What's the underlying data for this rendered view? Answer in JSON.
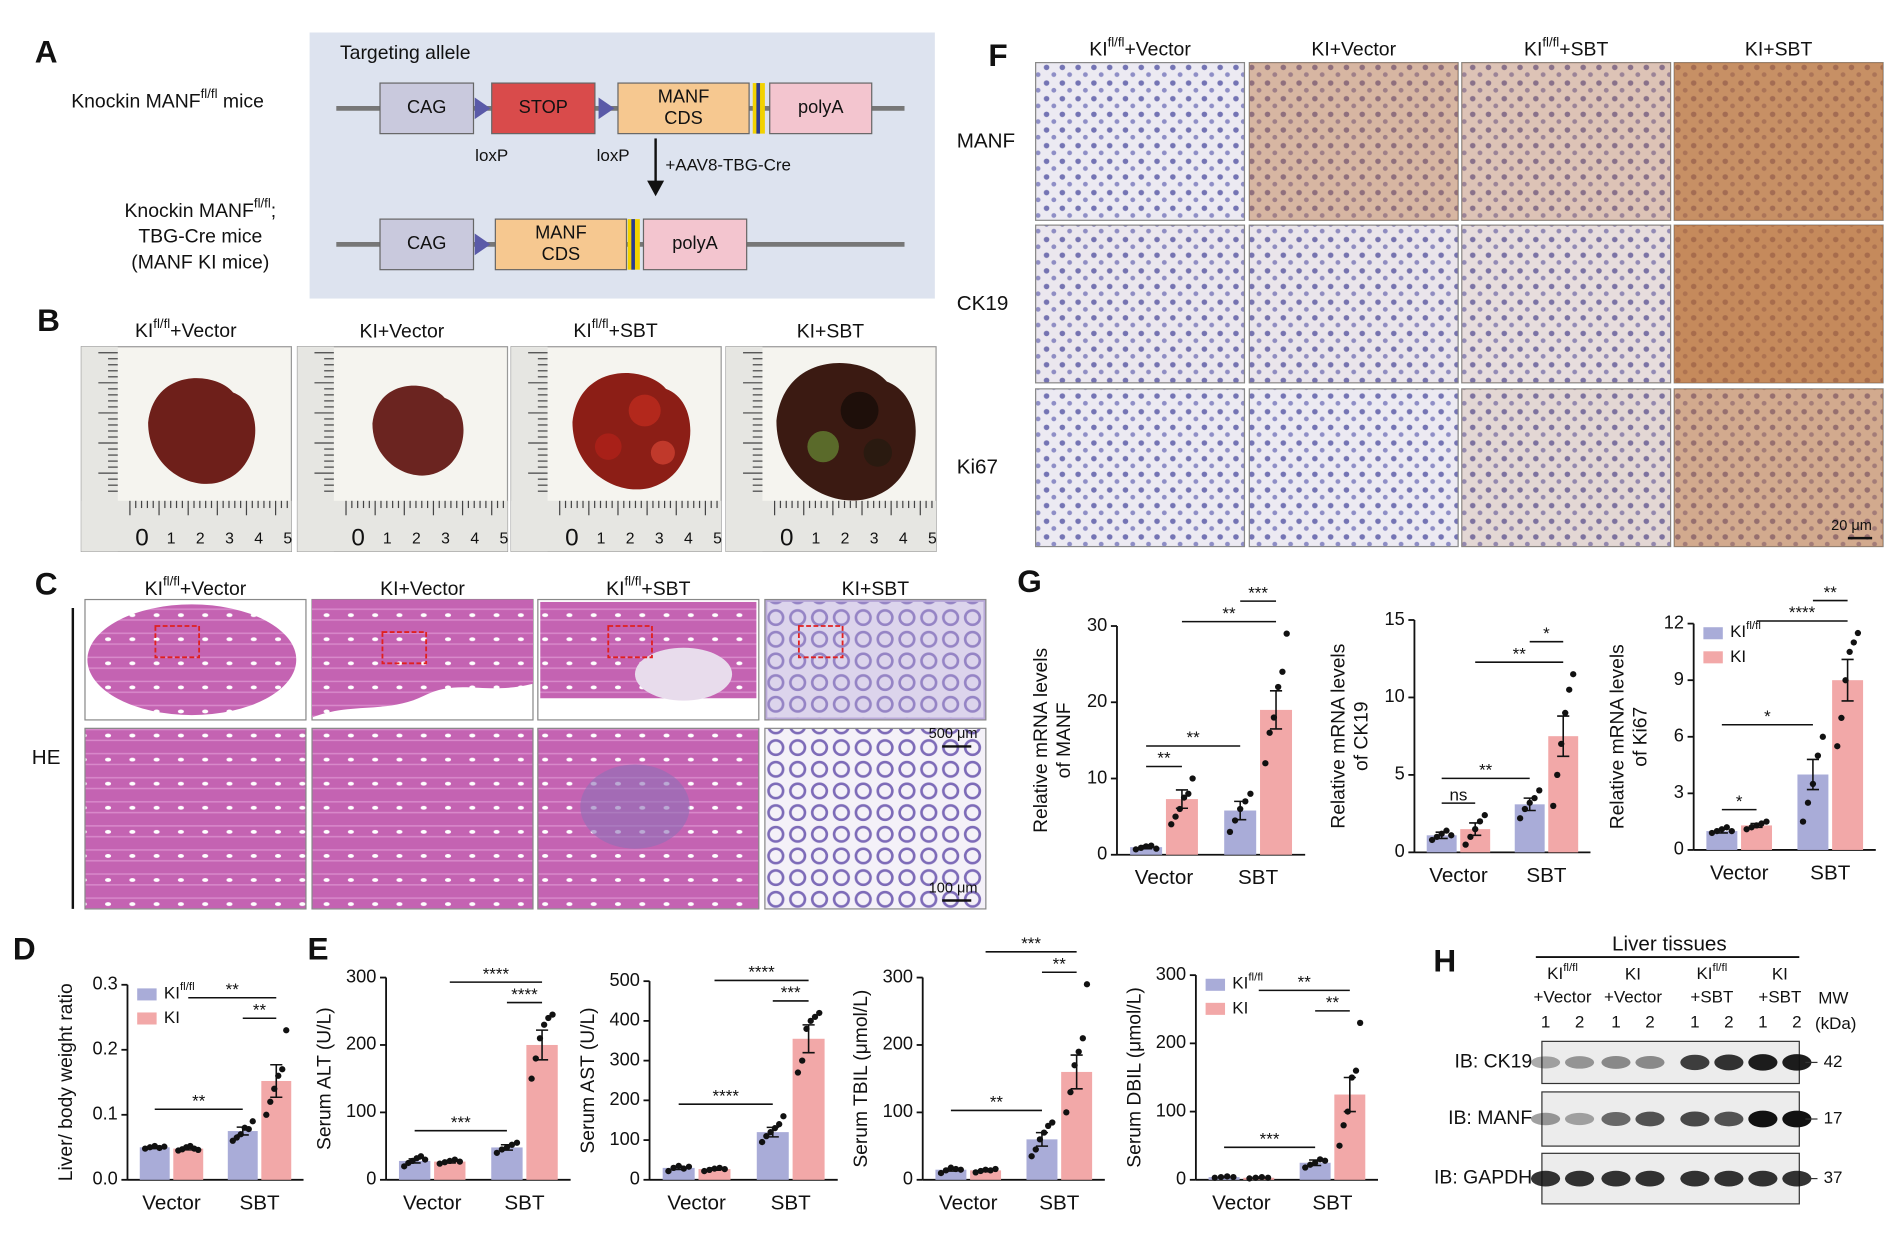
{
  "panel_labels": [
    "A",
    "B",
    "C",
    "D",
    "E",
    "F",
    "G",
    "H"
  ],
  "panel_a": {
    "mouse_1": "Knockin MANFfl/fl mice",
    "mouse_2": [
      "Knockin MANFfl/fl;",
      "TBG-Cre mice",
      "(MANF KI mice)"
    ],
    "box_title": "Targeting allele",
    "allele_1": [
      "CAG",
      "STOP",
      [
        "MANF",
        "CDS"
      ],
      "polyA"
    ],
    "loxp": "loxP",
    "treatment": "+AAV8-TBG-Cre",
    "allele_2": [
      "CAG",
      [
        "MANF",
        "CDS"
      ],
      "polyA"
    ]
  },
  "panel_b": {
    "columns": [
      "KIfl/fl+Vector",
      "KI+Vector",
      "KIfl/fl+SBT",
      "KI+SBT"
    ],
    "ruler": [
      0,
      1,
      2,
      3,
      4,
      5
    ]
  },
  "panel_c": {
    "columns": [
      "KIfl/fl+Vector",
      "KI+Vector",
      "KIfl/fl+SBT",
      "KI+SBT"
    ],
    "row_label": "HE",
    "scale_top": "500 μm",
    "scale_bottom": "100 μm"
  },
  "panel_f": {
    "columns": [
      "KIfl/fl+Vector",
      "KI+Vector",
      "KIfl/fl+SBT",
      "KI+SBT"
    ],
    "rows": [
      "MANF",
      "CK19",
      "Ki67"
    ],
    "scale": "20 μm"
  },
  "panel_h": {
    "title": "Liver tissues",
    "groups": [
      [
        "KIfl/fl",
        "+Vector"
      ],
      [
        "KI",
        "+Vector"
      ],
      [
        "KIfl/fl",
        "+SBT"
      ],
      [
        "KI",
        "+SBT"
      ]
    ],
    "lanes": [
      1,
      2
    ],
    "mw_label": [
      "MW",
      "(kDa)"
    ],
    "rows": [
      {
        "label": "IB: CK19",
        "mw": 42
      },
      {
        "label": "IB: MANF",
        "mw": 17
      },
      {
        "label": "IB: GAPDH",
        "mw": 37
      }
    ]
  },
  "chart_data": [
    {
      "type": "bar",
      "ylabel": "Liver/ body weight ratio",
      "categories": [
        "Vector",
        "SBT"
      ],
      "series": [
        {
          "name": "KIfl/fl",
          "color": "#a9acd8",
          "values": [
            0.05,
            0.075
          ],
          "errors": [
            0.002,
            0.006
          ],
          "points": [
            [
              0.048,
              0.05,
              0.052,
              0.049,
              0.051
            ],
            [
              0.06,
              0.065,
              0.07,
              0.08,
              0.078,
              0.09
            ]
          ]
        },
        {
          "name": "KI",
          "color": "#f2a8a8",
          "values": [
            0.048,
            0.152
          ],
          "errors": [
            0.002,
            0.025
          ],
          "points": [
            [
              0.045,
              0.047,
              0.05,
              0.052,
              0.048,
              0.046
            ],
            [
              0.1,
              0.12,
              0.14,
              0.16,
              0.17,
              0.23
            ]
          ]
        }
      ],
      "ylim": [
        0,
        0.3
      ],
      "yticks": [
        {
          "value": 0,
          "label": "0.0"
        },
        0.1,
        0.2,
        0.3
      ],
      "legend": "upper left",
      "comparisons": [
        {
          "between": [
            [
              0,
              0
            ],
            [
              0,
              1
            ]
          ],
          "label": "**"
        },
        {
          "between": [
            [
              0,
              1
            ],
            [
              1,
              1
            ]
          ],
          "label": "**"
        },
        {
          "between": [
            [
              1,
              0
            ],
            [
              1,
              1
            ]
          ],
          "label": "**"
        }
      ]
    },
    {
      "type": "bar",
      "ylabel": "Serum ALT (U/L)",
      "categories": [
        "Vector",
        "SBT"
      ],
      "series": [
        {
          "color": "#a9acd8",
          "values": [
            28,
            48
          ],
          "errors": [
            3,
            4
          ],
          "points": [
            [
              20,
              25,
              28,
              32,
              35,
              30
            ],
            [
              40,
              45,
              48,
              52,
              55
            ]
          ]
        },
        {
          "color": "#f2a8a8",
          "values": [
            27,
            200
          ],
          "errors": [
            2,
            22
          ],
          "points": [
            [
              24,
              26,
              28,
              30,
              27
            ],
            [
              150,
              180,
              210,
              230,
              240,
              245
            ]
          ]
        }
      ],
      "ylim": [
        0,
        300
      ],
      "yticks": [
        0,
        100,
        200,
        300
      ],
      "comparisons": [
        {
          "between": [
            [
              0,
              0
            ],
            [
              0,
              1
            ]
          ],
          "label": "***"
        },
        {
          "between": [
            [
              0,
              1
            ],
            [
              1,
              1
            ]
          ],
          "label": "****"
        },
        {
          "between": [
            [
              1,
              0
            ],
            [
              1,
              1
            ]
          ],
          "label": "****"
        }
      ]
    },
    {
      "type": "bar",
      "ylabel": "Serum AST (U/L)",
      "categories": [
        "Vector",
        "SBT"
      ],
      "series": [
        {
          "color": "#a9acd8",
          "values": [
            30,
            120
          ],
          "errors": [
            4,
            12
          ],
          "points": [
            [
              22,
              30,
              35,
              28,
              33
            ],
            [
              95,
              110,
              120,
              130,
              140,
              160
            ]
          ]
        },
        {
          "color": "#f2a8a8",
          "values": [
            27,
            355
          ],
          "errors": [
            3,
            35
          ],
          "points": [
            [
              22,
              25,
              28,
              30,
              27
            ],
            [
              270,
              300,
              380,
              400,
              410,
              420
            ]
          ]
        }
      ],
      "ylim": [
        0,
        500
      ],
      "yticks": [
        0,
        100,
        200,
        300,
        400,
        500
      ],
      "comparisons": [
        {
          "between": [
            [
              0,
              0
            ],
            [
              0,
              1
            ]
          ],
          "label": "****"
        },
        {
          "between": [
            [
              0,
              1
            ],
            [
              1,
              1
            ]
          ],
          "label": "***"
        },
        {
          "between": [
            [
              1,
              0
            ],
            [
              1,
              1
            ]
          ],
          "label": "****"
        }
      ]
    },
    {
      "type": "bar",
      "ylabel": "Serum TBIL (μmol/L)",
      "categories": [
        "Vector",
        "SBT"
      ],
      "series": [
        {
          "color": "#a9acd8",
          "values": [
            15,
            60
          ],
          "errors": [
            2,
            10
          ],
          "points": [
            [
              10,
              14,
              18,
              16,
              15
            ],
            [
              35,
              45,
              60,
              70,
              80,
              85
            ]
          ]
        },
        {
          "color": "#f2a8a8",
          "values": [
            14,
            160
          ],
          "errors": [
            2,
            25
          ],
          "points": [
            [
              11,
              13,
              15,
              14,
              16
            ],
            [
              100,
              130,
              170,
              190,
              210,
              290
            ]
          ]
        }
      ],
      "ylim": [
        0,
        300
      ],
      "yticks": [
        0,
        100,
        200,
        300
      ],
      "comparisons": [
        {
          "between": [
            [
              0,
              0
            ],
            [
              0,
              1
            ]
          ],
          "label": "**"
        },
        {
          "between": [
            [
              0,
              1
            ],
            [
              1,
              1
            ]
          ],
          "label": "**"
        },
        {
          "between": [
            [
              1,
              0
            ],
            [
              1,
              1
            ]
          ],
          "label": "***"
        }
      ]
    },
    {
      "type": "bar",
      "ylabel": "Serum DBIL (μmol/L)",
      "categories": [
        "Vector",
        "SBT"
      ],
      "series": [
        {
          "name": "KIfl/fl",
          "color": "#a9acd8",
          "values": [
            4,
            25
          ],
          "errors": [
            1,
            4
          ],
          "points": [
            [
              3,
              4,
              5,
              4
            ],
            [
              18,
              22,
              25,
              30,
              28
            ]
          ]
        },
        {
          "name": "KI",
          "color": "#f2a8a8",
          "values": [
            3,
            125
          ],
          "errors": [
            1,
            25
          ],
          "points": [
            [
              2,
              3,
              4,
              3
            ],
            [
              50,
              80,
              100,
              150,
              160,
              230
            ]
          ]
        }
      ],
      "ylim": [
        0,
        300
      ],
      "yticks": [
        0,
        100,
        200,
        300
      ],
      "legend": "upper left",
      "comparisons": [
        {
          "between": [
            [
              0,
              0
            ],
            [
              0,
              1
            ]
          ],
          "label": "***"
        },
        {
          "between": [
            [
              0,
              1
            ],
            [
              1,
              1
            ]
          ],
          "label": "**"
        },
        {
          "between": [
            [
              1,
              0
            ],
            [
              1,
              1
            ]
          ],
          "label": "**"
        }
      ]
    },
    {
      "type": "bar",
      "ylabel": [
        "Relative mRNA levels",
        "of MANF"
      ],
      "categories": [
        "Vector",
        "SBT"
      ],
      "series": [
        {
          "color": "#a9acd8",
          "values": [
            1,
            5.8
          ],
          "errors": [
            0.2,
            1.2
          ],
          "points": [
            [
              0.7,
              0.9,
              1.1,
              1.2,
              0.8
            ],
            [
              3,
              4.5,
              6,
              7,
              8
            ]
          ]
        },
        {
          "color": "#f2a8a8",
          "values": [
            7.3,
            19
          ],
          "errors": [
            1.2,
            2.5
          ],
          "points": [
            [
              4,
              5,
              6,
              7.5,
              8,
              10
            ],
            [
              12,
              16,
              18,
              22,
              24,
              29
            ]
          ]
        }
      ],
      "ylim": [
        0,
        30
      ],
      "yticks": [
        0,
        10,
        20,
        30
      ],
      "comparisons": [
        {
          "between": [
            [
              0,
              0
            ],
            [
              1,
              0
            ]
          ],
          "label": "**"
        },
        {
          "between": [
            [
              0,
              0
            ],
            [
              0,
              1
            ]
          ],
          "label": "**"
        },
        {
          "between": [
            [
              1,
              0
            ],
            [
              1,
              1
            ]
          ],
          "label": "**"
        },
        {
          "between": [
            [
              0,
              1
            ],
            [
              1,
              1
            ]
          ],
          "label": "***"
        }
      ]
    },
    {
      "type": "bar",
      "ylabel": [
        "Relative mRNA levels",
        "of CK19"
      ],
      "categories": [
        "Vector",
        "SBT"
      ],
      "series": [
        {
          "color": "#a9acd8",
          "values": [
            1.1,
            3.1
          ],
          "errors": [
            0.2,
            0.4
          ],
          "points": [
            [
              0.8,
              1,
              1.2,
              1.4,
              1.1
            ],
            [
              2.2,
              2.8,
              3.2,
              3.5,
              4
            ]
          ]
        },
        {
          "color": "#f2a8a8",
          "values": [
            1.5,
            7.5
          ],
          "errors": [
            0.4,
            1.3
          ],
          "points": [
            [
              0.5,
              1,
              1.5,
              2,
              2.4
            ],
            [
              3,
              5,
              7,
              9,
              10.5,
              11.5
            ]
          ]
        }
      ],
      "ylim": [
        0,
        15
      ],
      "yticks": [
        0,
        5,
        10,
        15
      ],
      "comparisons": [
        {
          "between": [
            [
              0,
              0
            ],
            [
              1,
              0
            ]
          ],
          "label": "ns"
        },
        {
          "between": [
            [
              0,
              0
            ],
            [
              0,
              1
            ]
          ],
          "label": "**"
        },
        {
          "between": [
            [
              1,
              0
            ],
            [
              1,
              1
            ]
          ],
          "label": "**"
        },
        {
          "between": [
            [
              0,
              1
            ],
            [
              1,
              1
            ]
          ],
          "label": "*"
        }
      ]
    },
    {
      "type": "bar",
      "ylabel": [
        "Relative mRNA levels",
        "of Ki67"
      ],
      "categories": [
        "Vector",
        "SBT"
      ],
      "series": [
        {
          "name": "KIfl/fl",
          "color": "#a9acd8",
          "values": [
            1,
            4
          ],
          "errors": [
            0.1,
            0.8
          ],
          "points": [
            [
              0.9,
              1,
              1.1,
              1.2,
              1
            ],
            [
              1.5,
              2.5,
              3.5,
              5,
              6
            ]
          ]
        },
        {
          "name": "KI",
          "color": "#f2a8a8",
          "values": [
            1.3,
            9
          ],
          "errors": [
            0.1,
            1.1
          ],
          "points": [
            [
              1.1,
              1.2,
              1.3,
              1.4,
              1.5
            ],
            [
              5.5,
              7,
              9,
              10.5,
              11,
              11.5
            ]
          ]
        }
      ],
      "ylim": [
        0,
        12
      ],
      "yticks": [
        0,
        3,
        6,
        9,
        12
      ],
      "legend": "upper left",
      "comparisons": [
        {
          "between": [
            [
              0,
              0
            ],
            [
              1,
              0
            ]
          ],
          "label": "*"
        },
        {
          "between": [
            [
              0,
              0
            ],
            [
              0,
              1
            ]
          ],
          "label": "*"
        },
        {
          "between": [
            [
              1,
              0
            ],
            [
              1,
              1
            ]
          ],
          "label": "****"
        },
        {
          "between": [
            [
              0,
              1
            ],
            [
              1,
              1
            ]
          ],
          "label": "**"
        }
      ]
    }
  ]
}
